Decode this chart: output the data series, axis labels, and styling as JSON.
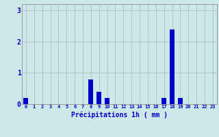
{
  "hours": [
    0,
    1,
    2,
    3,
    4,
    5,
    6,
    7,
    8,
    9,
    10,
    11,
    12,
    13,
    14,
    15,
    16,
    17,
    18,
    19,
    20,
    21,
    22,
    23
  ],
  "values": [
    0.2,
    0.0,
    0.0,
    0.0,
    0.0,
    0.0,
    0.0,
    0.0,
    0.8,
    0.4,
    0.2,
    0.0,
    0.0,
    0.0,
    0.0,
    0.0,
    0.0,
    0.2,
    2.4,
    0.2,
    0.0,
    0.0,
    0.0,
    0.0
  ],
  "bar_color": "#0000cc",
  "background_color": "#cce8e8",
  "grid_color": "#b0c8c8",
  "xlabel": "Précipitations 1h ( mm )",
  "tick_color": "#0000cc",
  "ylim": [
    0,
    3.2
  ],
  "yticks": [
    0,
    1,
    2,
    3
  ],
  "xlim": [
    -0.5,
    23.5
  ],
  "bar_width": 0.6
}
